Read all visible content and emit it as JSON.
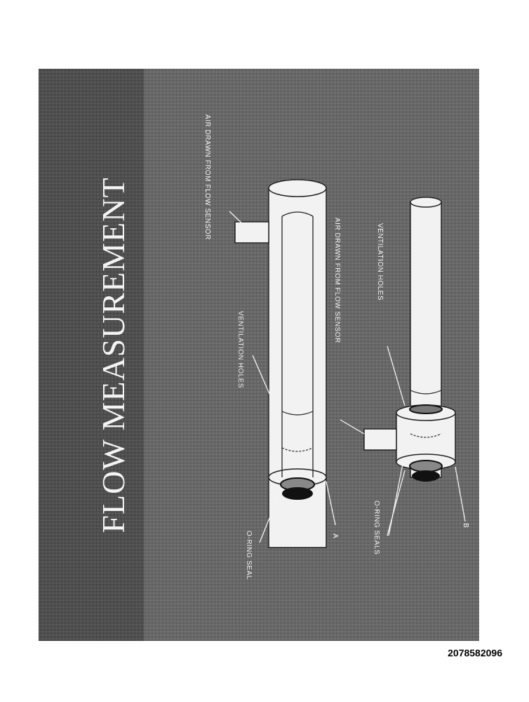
{
  "slide": {
    "title": "FLOW MEASUREMENT",
    "labels": {
      "air_drawn_a": "AIR DRAWN FROM FLOW SENSOR",
      "air_drawn_b": "AIR DRAWN FROM FLOW SENSOR",
      "ventilation_a": "VENTILATION HOLES",
      "ventilation_b": "VENTILATION HOLES",
      "oring_seal": "O-RING SEAL",
      "oring_seals": "O-RING SEALS",
      "tag_a": "A",
      "tag_b": "B"
    }
  },
  "document_id": "2078582096",
  "colors": {
    "slide_background": "#6e6e6e",
    "title_band": "#555555",
    "tube_fill": "#f2f2f2",
    "outline": "#222222",
    "lettering": "#f4f4f4"
  }
}
